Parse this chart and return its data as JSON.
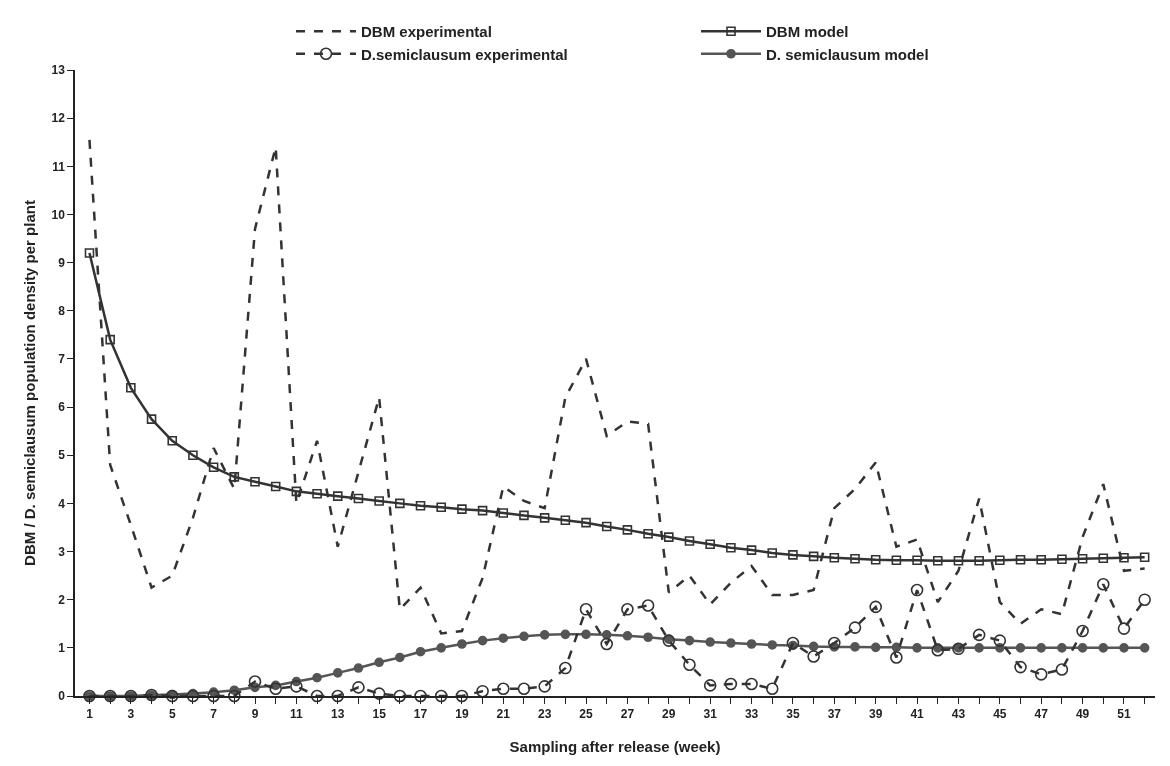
{
  "chart_data": {
    "type": "line",
    "xlabel": "Sampling after release (week)",
    "ylabel": "DBM / D. semiclausum population density per plant",
    "x": [
      1,
      2,
      3,
      4,
      5,
      6,
      7,
      8,
      9,
      10,
      11,
      12,
      13,
      14,
      15,
      16,
      17,
      18,
      19,
      20,
      21,
      22,
      23,
      24,
      25,
      26,
      27,
      28,
      29,
      30,
      31,
      32,
      33,
      34,
      35,
      36,
      37,
      38,
      39,
      40,
      41,
      42,
      43,
      44,
      45,
      46,
      47,
      48,
      49,
      50,
      51,
      52
    ],
    "xlim": [
      0.3,
      52.5
    ],
    "xticks": [
      1,
      {
        "value": 2,
        "label": null
      },
      3,
      {
        "value": 4,
        "label": null
      },
      5,
      {
        "value": 6,
        "label": null
      },
      7,
      {
        "value": 8,
        "label": null
      },
      9,
      {
        "value": 10,
        "label": null
      },
      11,
      {
        "value": 12,
        "label": null
      },
      13,
      {
        "value": 14,
        "label": null
      },
      15,
      {
        "value": 16,
        "label": null
      },
      17,
      {
        "value": 18,
        "label": null
      },
      19,
      {
        "value": 20,
        "label": null
      },
      21,
      {
        "value": 22,
        "label": null
      },
      23,
      {
        "value": 24,
        "label": null
      },
      25,
      {
        "value": 26,
        "label": null
      },
      27,
      {
        "value": 28,
        "label": null
      },
      29,
      {
        "value": 30,
        "label": null
      },
      31,
      {
        "value": 32,
        "label": null
      },
      33,
      {
        "value": 34,
        "label": null
      },
      35,
      {
        "value": 36,
        "label": null
      },
      37,
      {
        "value": 38,
        "label": null
      },
      39,
      {
        "value": 40,
        "label": null
      },
      41,
      {
        "value": 42,
        "label": null
      },
      43,
      {
        "value": 44,
        "label": null
      },
      45,
      {
        "value": 46,
        "label": null
      },
      47,
      {
        "value": 48,
        "label": null
      },
      49,
      {
        "value": 50,
        "label": null
      },
      51,
      {
        "value": 52,
        "label": null
      }
    ],
    "ylim": [
      0,
      13
    ],
    "yticks": [
      0,
      1,
      2,
      3,
      4,
      5,
      6,
      7,
      8,
      9,
      10,
      11,
      12,
      13
    ],
    "grid": false,
    "legend": "top",
    "series": [
      {
        "name": "DBM experimental",
        "color": "#333333",
        "line_style": "dashed",
        "marker": "none",
        "values": [
          11.55,
          4.8,
          3.55,
          2.25,
          2.5,
          3.7,
          5.15,
          4.3,
          9.7,
          11.4,
          4.0,
          5.3,
          3.1,
          4.65,
          6.2,
          1.8,
          2.25,
          1.3,
          1.35,
          2.45,
          4.35,
          4.05,
          3.9,
          6.2,
          7.0,
          5.4,
          5.7,
          5.65,
          2.15,
          2.5,
          1.9,
          2.35,
          2.7,
          2.1,
          2.1,
          2.2,
          3.9,
          4.3,
          4.85,
          3.1,
          3.25,
          1.95,
          2.6,
          4.1,
          1.95,
          1.5,
          1.8,
          1.7,
          3.3,
          4.4,
          2.6,
          2.65
        ]
      },
      {
        "name": "DBM model",
        "color": "#333333",
        "line_style": "solid",
        "marker": "square",
        "values": [
          9.2,
          7.4,
          6.4,
          5.75,
          5.3,
          5.0,
          4.75,
          4.55,
          4.45,
          4.35,
          4.25,
          4.2,
          4.15,
          4.1,
          4.05,
          4.0,
          3.95,
          3.92,
          3.88,
          3.85,
          3.8,
          3.75,
          3.7,
          3.65,
          3.6,
          3.52,
          3.45,
          3.37,
          3.3,
          3.22,
          3.15,
          3.08,
          3.03,
          2.97,
          2.93,
          2.9,
          2.87,
          2.85,
          2.83,
          2.82,
          2.82,
          2.81,
          2.81,
          2.81,
          2.82,
          2.83,
          2.83,
          2.84,
          2.85,
          2.86,
          2.87,
          2.88
        ]
      },
      {
        "name": "D.semiclausum experimental",
        "color": "#333333",
        "line_style": "dashed",
        "marker": "circle",
        "values": [
          0,
          0,
          0,
          0.02,
          0,
          0,
          0,
          0,
          0.3,
          0.15,
          0.2,
          0,
          0,
          0.18,
          0.05,
          0,
          0,
          0,
          0,
          0.1,
          0.15,
          0.15,
          0.2,
          0.58,
          1.8,
          1.08,
          1.8,
          1.88,
          1.15,
          0.65,
          0.22,
          0.25,
          0.25,
          0.15,
          1.1,
          0.82,
          1.1,
          1.42,
          1.85,
          0.8,
          2.2,
          0.95,
          0.98,
          1.27,
          1.15,
          0.6,
          0.45,
          0.55,
          1.35,
          2.32,
          1.4,
          2.0
        ]
      },
      {
        "name": "D. semiclausum model",
        "color": "#555555",
        "line_style": "solid",
        "marker": "circle",
        "values": [
          0,
          0,
          0,
          0.02,
          0.03,
          0.05,
          0.08,
          0.12,
          0.18,
          0.22,
          0.3,
          0.38,
          0.48,
          0.58,
          0.7,
          0.8,
          0.92,
          1.0,
          1.08,
          1.15,
          1.2,
          1.24,
          1.27,
          1.28,
          1.28,
          1.27,
          1.25,
          1.22,
          1.18,
          1.15,
          1.12,
          1.1,
          1.08,
          1.06,
          1.05,
          1.03,
          1.02,
          1.02,
          1.01,
          1.01,
          1.0,
          1.0,
          1.0,
          1.0,
          1.0,
          1.0,
          1.0,
          1.0,
          1.0,
          1.0,
          1.0,
          1.0
        ]
      }
    ]
  }
}
